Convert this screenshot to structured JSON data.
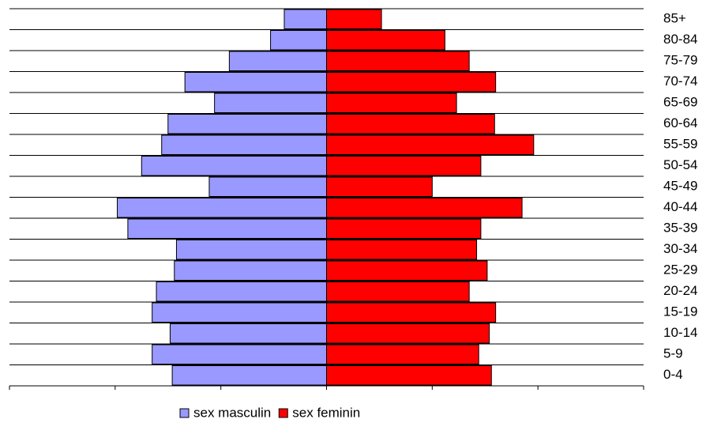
{
  "chart_data": {
    "type": "pyramid",
    "categories": [
      "0-4",
      "5-9",
      "10-14",
      "15-19",
      "20-24",
      "25-29",
      "30-34",
      "35-39",
      "40-44",
      "45-49",
      "50-54",
      "55-59",
      "60-64",
      "65-69",
      "70-74",
      "75-79",
      "80-84",
      "85+"
    ],
    "series": [
      {
        "name": "sex masculin",
        "color": "#9999ff",
        "side": "left",
        "values": [
          146,
          165,
          148,
          165,
          161,
          144,
          142,
          188,
          198,
          111,
          175,
          156,
          150,
          106,
          134,
          92,
          53,
          40
        ]
      },
      {
        "name": "sex feminin",
        "color": "#ff0000",
        "side": "right",
        "values": [
          156,
          144,
          154,
          160,
          135,
          152,
          142,
          146,
          185,
          100,
          146,
          196,
          159,
          123,
          160,
          135,
          112,
          52
        ]
      }
    ],
    "xlim": [
      -300,
      300
    ],
    "xticks": [
      -300,
      -200,
      -100,
      0,
      100,
      200,
      300
    ],
    "legend": "bottom"
  }
}
